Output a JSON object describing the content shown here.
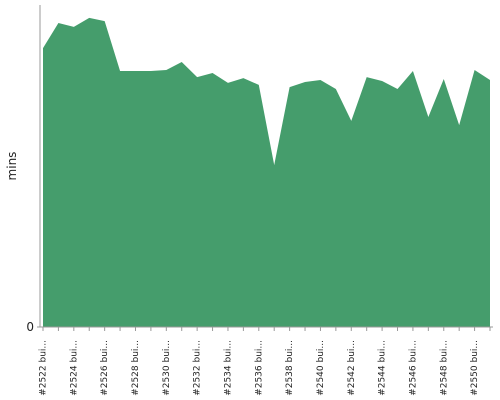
{
  "chart_data": {
    "type": "area",
    "y_label": "mins",
    "color": "#459d6c",
    "categories": [
      "#2522 bui...",
      null,
      "#2524 bui...",
      null,
      "#2526 bui...",
      null,
      "#2528 bui...",
      null,
      "#2530 bui...",
      null,
      "#2532 bui...",
      null,
      "#2534 bui...",
      null,
      "#2536 bui...",
      null,
      "#2538 bui...",
      null,
      "#2540 bui...",
      null,
      "#2542 bui...",
      null,
      "#2544 bui...",
      null,
      "#2546 bui...",
      null,
      "#2548 bui...",
      null,
      "#2550 bui...",
      null
    ],
    "values": [
      86.6,
      94.4,
      93.2,
      96.0,
      95.0,
      79.5,
      79.5,
      79.5,
      79.8,
      82.3,
      77.6,
      78.9,
      75.8,
      77.3,
      75.2,
      50.3,
      74.5,
      76.1,
      76.7,
      73.9,
      64.0,
      77.6,
      76.4,
      73.9,
      79.5,
      65.2,
      77.0,
      62.7,
      79.8,
      76.7
    ],
    "ylim": [
      0,
      100
    ],
    "yticks": [
      0
    ]
  }
}
